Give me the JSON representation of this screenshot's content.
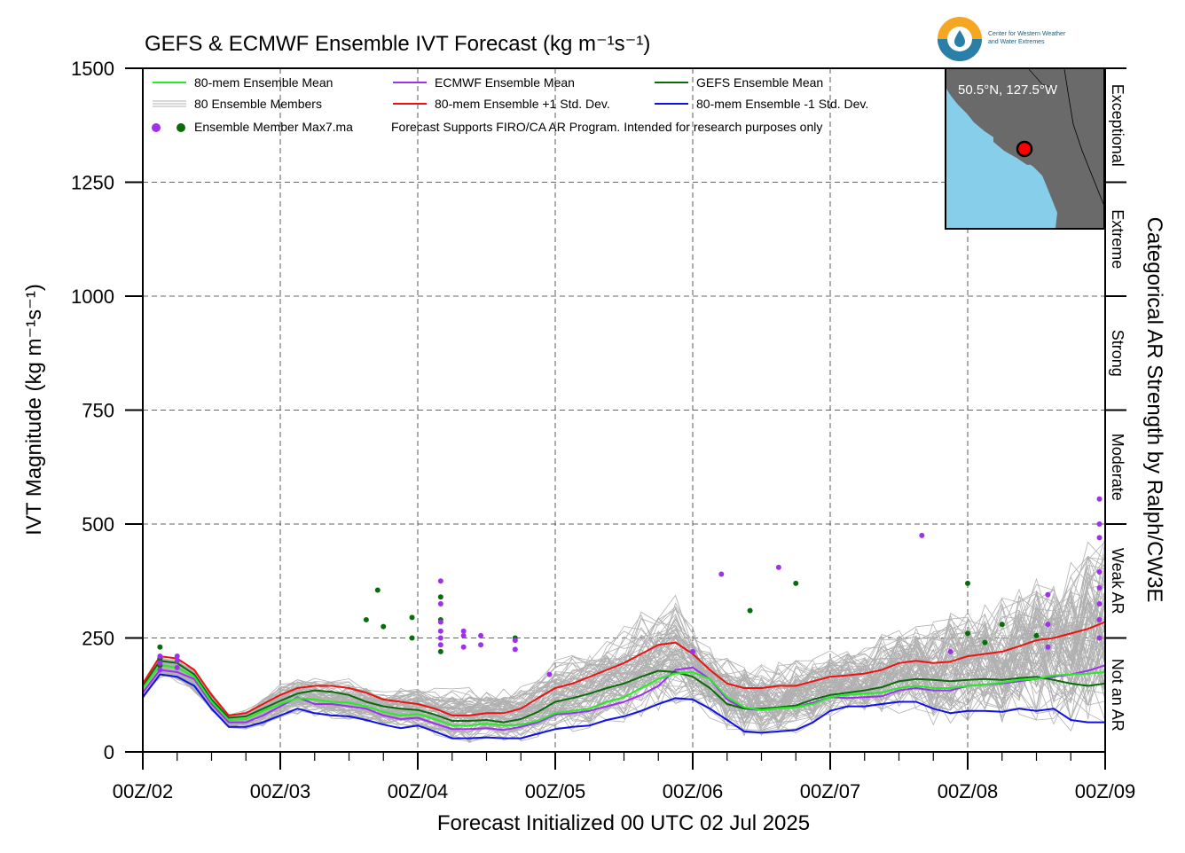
{
  "chart_data": {
    "type": "line",
    "title": "GEFS & ECMWF Ensemble IVT Forecast (kg m⁻¹s⁻¹)",
    "ylabel": "IVT Magnitude (kg m⁻¹s⁻¹)",
    "xlabel": "Forecast Initialized 00 UTC 02 Jul 2025",
    "right_label": "Categorical AR Strength by Ralph/CW3E",
    "ylim": [
      0,
      1500
    ],
    "xlim": [
      0,
      168
    ],
    "y_ticks": [
      "0",
      "250",
      "500",
      "750",
      "1000",
      "1250",
      "1500"
    ],
    "y_tick_values": [
      0,
      250,
      500,
      750,
      1000,
      1250,
      1500
    ],
    "x_tick_labels": [
      "00Z/02",
      "00Z/03",
      "00Z/04",
      "00Z/05",
      "00Z/06",
      "00Z/07",
      "00Z/08",
      "00Z/09"
    ],
    "x_tick_hours": [
      0,
      24,
      48,
      72,
      96,
      120,
      144,
      168
    ],
    "grid": true,
    "legend_position": "top-left",
    "categories_ar": [
      {
        "label": "Not an AR",
        "range": [
          0,
          250
        ]
      },
      {
        "label": "Weak AR",
        "range": [
          250,
          500
        ]
      },
      {
        "label": "Moderate",
        "range": [
          500,
          750
        ]
      },
      {
        "label": "Strong",
        "range": [
          750,
          1000
        ]
      },
      {
        "label": "Extreme",
        "range": [
          1000,
          1250
        ]
      },
      {
        "label": "Exceptional",
        "range": [
          1250,
          1500
        ]
      }
    ],
    "legend": {
      "row1": [
        "80-mem Ensemble Mean",
        "ECMWF Ensemble Mean",
        "GEFS Ensemble Mean"
      ],
      "row2": [
        "80 Ensemble Members",
        "80-mem Ensemble +1 Std. Dev.",
        "80-mem Ensemble -1 Std. Dev."
      ],
      "row3_marker_label": "Ensemble Member Max7.ma",
      "row3_note": "Forecast Supports FIRO/CA AR Program. Intended for research purposes only"
    },
    "x_hours": [
      0,
      3,
      6,
      9,
      12,
      15,
      18,
      21,
      24,
      27,
      30,
      33,
      36,
      39,
      42,
      45,
      48,
      51,
      54,
      57,
      60,
      63,
      66,
      69,
      72,
      75,
      78,
      81,
      84,
      87,
      90,
      93,
      96,
      99,
      102,
      105,
      108,
      111,
      114,
      117,
      120,
      123,
      126,
      129,
      132,
      135,
      138,
      141,
      144,
      147,
      150,
      153,
      156,
      159,
      162,
      165,
      168
    ],
    "series": [
      {
        "name": "80-mem Ensemble Mean",
        "color": "#22ee22",
        "values": [
          140,
          190,
          185,
          165,
          110,
          70,
          72,
          90,
          105,
          118,
          115,
          110,
          108,
          100,
          88,
          80,
          83,
          72,
          58,
          58,
          62,
          58,
          60,
          68,
          85,
          90,
          95,
          110,
          120,
          140,
          160,
          172,
          175,
          160,
          120,
          98,
          92,
          96,
          98,
          105,
          120,
          125,
          128,
          130,
          140,
          145,
          140,
          140,
          145,
          148,
          152,
          158,
          160,
          168,
          170,
          172,
          175
        ]
      },
      {
        "name": "ECMWF Ensemble Mean",
        "color": "#a030f0",
        "values": [
          130,
          180,
          175,
          160,
          105,
          65,
          65,
          80,
          100,
          120,
          105,
          105,
          100,
          95,
          80,
          72,
          75,
          62,
          50,
          50,
          52,
          48,
          55,
          65,
          82,
          85,
          90,
          100,
          110,
          125,
          145,
          180,
          185,
          160,
          115,
          95,
          92,
          96,
          98,
          108,
          120,
          118,
          120,
          122,
          135,
          140,
          135,
          135,
          145,
          148,
          150,
          155,
          160,
          165,
          170,
          178,
          190
        ]
      },
      {
        "name": "GEFS Ensemble Mean",
        "color": "#0a6b0a",
        "values": [
          145,
          200,
          195,
          170,
          115,
          75,
          78,
          95,
          112,
          128,
          135,
          132,
          125,
          110,
          100,
          95,
          92,
          82,
          68,
          68,
          70,
          65,
          72,
          88,
          110,
          118,
          128,
          140,
          150,
          165,
          178,
          175,
          165,
          140,
          105,
          95,
          95,
          98,
          102,
          115,
          125,
          130,
          135,
          142,
          155,
          160,
          158,
          155,
          158,
          160,
          158,
          162,
          165,
          158,
          150,
          145,
          150
        ]
      },
      {
        "name": "80-mem Ensemble +1 Std. Dev.",
        "color": "#ee1111",
        "values": [
          150,
          210,
          205,
          180,
          125,
          80,
          85,
          105,
          125,
          140,
          145,
          145,
          140,
          130,
          115,
          110,
          105,
          95,
          80,
          80,
          85,
          85,
          95,
          118,
          140,
          150,
          165,
          180,
          195,
          215,
          235,
          240,
          215,
          180,
          150,
          140,
          140,
          145,
          145,
          155,
          165,
          168,
          172,
          180,
          195,
          200,
          195,
          198,
          210,
          215,
          220,
          232,
          245,
          250,
          260,
          270,
          285
        ]
      },
      {
        "name": "80-mem Ensemble -1 Std. Dev.",
        "color": "#1010e8",
        "values": [
          120,
          170,
          165,
          145,
          95,
          55,
          55,
          65,
          80,
          95,
          85,
          80,
          78,
          70,
          60,
          52,
          58,
          45,
          30,
          30,
          32,
          30,
          30,
          40,
          50,
          55,
          58,
          70,
          78,
          90,
          105,
          118,
          115,
          95,
          70,
          45,
          42,
          45,
          48,
          65,
          90,
          100,
          100,
          105,
          110,
          110,
          95,
          85,
          90,
          90,
          88,
          95,
          90,
          95,
          70,
          65,
          65
        ]
      }
    ],
    "members_envelope": {
      "upper": [
        150,
        215,
        210,
        185,
        135,
        85,
        95,
        125,
        150,
        165,
        165,
        160,
        165,
        155,
        140,
        150,
        150,
        145,
        145,
        150,
        150,
        145,
        150,
        175,
        205,
        225,
        235,
        260,
        280,
        320,
        330,
        360,
        290,
        240,
        210,
        200,
        195,
        205,
        210,
        220,
        230,
        230,
        240,
        260,
        280,
        300,
        300,
        320,
        330,
        340,
        350,
        380,
        400,
        420,
        440,
        470,
        540
      ],
      "lower": [
        115,
        160,
        150,
        130,
        85,
        50,
        48,
        55,
        70,
        80,
        75,
        70,
        65,
        55,
        45,
        40,
        40,
        25,
        15,
        15,
        20,
        20,
        20,
        25,
        35,
        35,
        40,
        50,
        55,
        65,
        80,
        95,
        90,
        70,
        40,
        30,
        30,
        30,
        35,
        50,
        75,
        80,
        75,
        75,
        75,
        70,
        55,
        50,
        55,
        55,
        55,
        55,
        50,
        55,
        40,
        35,
        35
      ]
    },
    "max_points_gefs": [
      [
        3,
        230
      ],
      [
        3,
        205
      ],
      [
        3,
        190
      ],
      [
        39,
        290
      ],
      [
        41,
        355
      ],
      [
        42,
        275
      ],
      [
        47,
        295
      ],
      [
        47,
        250
      ],
      [
        52,
        340
      ],
      [
        52,
        290
      ],
      [
        52,
        220
      ],
      [
        65,
        250
      ],
      [
        106,
        310
      ],
      [
        114,
        370
      ],
      [
        144,
        260
      ],
      [
        144,
        370
      ],
      [
        147,
        240
      ],
      [
        150,
        280
      ],
      [
        156,
        255
      ]
    ],
    "max_points_ecmwf": [
      [
        3,
        210
      ],
      [
        3,
        195
      ],
      [
        3,
        180
      ],
      [
        6,
        210
      ],
      [
        6,
        200
      ],
      [
        6,
        185
      ],
      [
        52,
        375
      ],
      [
        52,
        325
      ],
      [
        52,
        285
      ],
      [
        52,
        265
      ],
      [
        52,
        250
      ],
      [
        52,
        235
      ],
      [
        56,
        265
      ],
      [
        56,
        255
      ],
      [
        56,
        230
      ],
      [
        59,
        255
      ],
      [
        59,
        235
      ],
      [
        65,
        245
      ],
      [
        65,
        225
      ],
      [
        71,
        170
      ],
      [
        96,
        220
      ],
      [
        101,
        390
      ],
      [
        111,
        405
      ],
      [
        136,
        475
      ],
      [
        141,
        220
      ],
      [
        158,
        345
      ],
      [
        158,
        280
      ],
      [
        158,
        230
      ],
      [
        167,
        555
      ],
      [
        167,
        500
      ],
      [
        167,
        470
      ],
      [
        167,
        395
      ],
      [
        167,
        360
      ],
      [
        167,
        325
      ],
      [
        167,
        290
      ],
      [
        167,
        250
      ]
    ],
    "map_inset": {
      "label": "50.5°N, 127.5°W"
    },
    "logo_text": [
      "Center for Western Weather",
      "and Water Extremes"
    ]
  },
  "colors": {
    "member": "#b0b0b0",
    "map_ocean": "#87ceeb",
    "map_land": "#6a6a6a",
    "marker_gefs": "#0a6b0a",
    "marker_ecmwf": "#a030f0"
  }
}
